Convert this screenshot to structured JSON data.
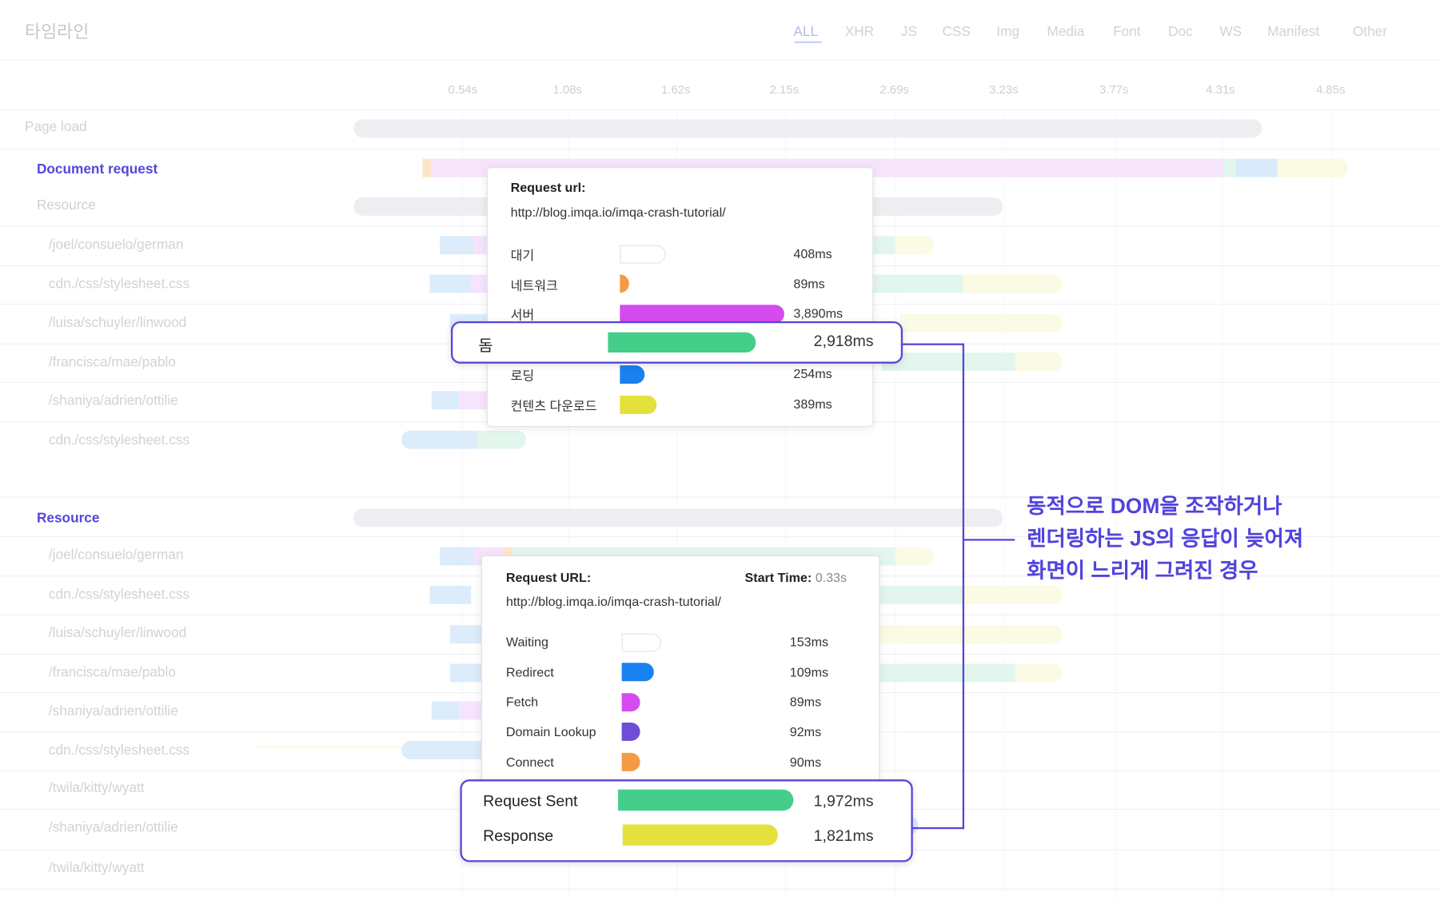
{
  "header": {
    "title": "타임라인",
    "filters": [
      "ALL",
      "XHR",
      "JS",
      "CSS",
      "Img",
      "Media",
      "Font",
      "Doc",
      "WS",
      "Manifest",
      "Other"
    ],
    "active_filter": "ALL"
  },
  "axis": {
    "ticks": [
      "0.54s",
      "1.08s",
      "1.62s",
      "2.15s",
      "2.69s",
      "3.23s",
      "3.77s",
      "4.31s",
      "4.85s"
    ]
  },
  "rows": {
    "page_load": "Page load",
    "document_request": "Document request",
    "resource_sub": "Resource",
    "group1": [
      "/joel/consuelo/german",
      "cdn./css/stylesheet.css",
      "/luisa/schuyler/linwood",
      "/francisca/mae/pablo",
      "/shaniya/adrien/ottilie",
      "cdn./css/stylesheet.css"
    ],
    "resource_section": "Resource",
    "group2": [
      "/joel/consuelo/german",
      "cdn./css/stylesheet.css",
      "/luisa/schuyler/linwood",
      "/francisca/mae/pablo",
      "/shaniya/adrien/ottilie",
      "cdn./css/stylesheet.css",
      "/twila/kitty/wyatt",
      "/shaniya/adrien/ottilie",
      "/twila/kitty/wyatt"
    ]
  },
  "popup1": {
    "url_label": "Request url:",
    "url": "http://blog.imqa.io/imqa-crash-tutorial/",
    "items": [
      {
        "label": "대기",
        "value": "408ms",
        "color": "#ffffff"
      },
      {
        "label": "네트워크",
        "value": "89ms",
        "color": "#f59a45"
      },
      {
        "label": "서버",
        "value": "3,890ms",
        "color": "#d64bf0"
      },
      {
        "label": "로딩",
        "value": "254ms",
        "color": "#1a82f0"
      },
      {
        "label": "컨텐츠 다운로드",
        "value": "389ms",
        "color": "#e4e03c"
      }
    ],
    "highlight": {
      "label": "돔",
      "value": "2,918ms",
      "color": "#45ce8a"
    }
  },
  "popup2": {
    "url_label": "Request URL:",
    "start_label": "Start Time:",
    "start_value": "0.33s",
    "url": "http://blog.imqa.io/imqa-crash-tutorial/",
    "items": [
      {
        "label": "Waiting",
        "value": "153ms",
        "color": "#ffffff"
      },
      {
        "label": "Redirect",
        "value": "109ms",
        "color": "#1a82f0"
      },
      {
        "label": "Fetch",
        "value": "89ms",
        "color": "#d64bf0"
      },
      {
        "label": "Domain Lookup",
        "value": "92ms",
        "color": "#6c4ed8"
      },
      {
        "label": "Connect",
        "value": "90ms",
        "color": "#f59a45"
      }
    ],
    "highlight": [
      {
        "label": "Request Sent",
        "value": "1,972ms",
        "color": "#45ce8a"
      },
      {
        "label": "Response",
        "value": "1,821ms",
        "color": "#e4e03c"
      }
    ]
  },
  "annotation": {
    "lines": [
      "동적으로 DOM을 조작하거나",
      "렌더링하는 JS의 응답이 늦어져",
      "화면이 느리게 그려진 경우"
    ],
    "color": "#5043dc"
  }
}
